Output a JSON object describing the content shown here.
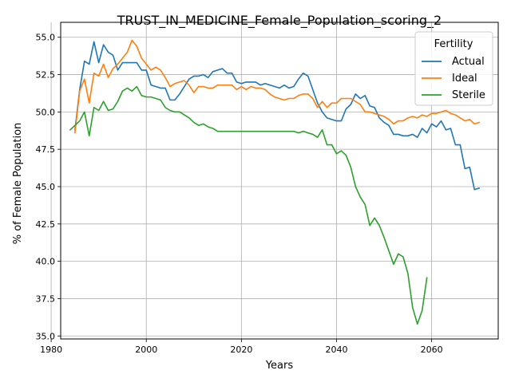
{
  "chart_data": {
    "type": "line",
    "title": "TRUST_IN_MEDICINE_Female_Population_scoring_2",
    "xlabel": "Years",
    "ylabel": "% of Female Population",
    "xlim": [
      1982,
      2074
    ],
    "ylim": [
      34.8,
      56.0
    ],
    "xticks": [
      1980,
      2000,
      2020,
      2040,
      2060
    ],
    "xtick_labels": [
      "1980",
      "2000",
      "2020",
      "2040",
      "2060"
    ],
    "yticks": [
      35.0,
      37.5,
      40.0,
      42.5,
      45.0,
      47.5,
      50.0,
      52.5,
      55.0
    ],
    "ytick_labels": [
      "35.0",
      "37.5",
      "40.0",
      "42.5",
      "45.0",
      "47.5",
      "50.0",
      "52.5",
      "55.0"
    ],
    "grid": true,
    "legend": {
      "title": "Fertility",
      "placement": "top-right"
    },
    "series": [
      {
        "name": "Actual",
        "color": "#1f77b4",
        "x": [
          1985,
          1986,
          1987,
          1988,
          1989,
          1990,
          1991,
          1992,
          1993,
          1994,
          1995,
          1996,
          1997,
          1998,
          1999,
          2000,
          2001,
          2002,
          2003,
          2004,
          2005,
          2006,
          2007,
          2008,
          2009,
          2010,
          2011,
          2012,
          2013,
          2014,
          2015,
          2016,
          2017,
          2018,
          2019,
          2020,
          2021,
          2022,
          2023,
          2024,
          2025,
          2026,
          2027,
          2028,
          2029,
          2030,
          2031,
          2032,
          2033,
          2034,
          2035,
          2036,
          2037,
          2038,
          2039,
          2040,
          2041,
          2042,
          2043,
          2044,
          2045,
          2046,
          2047,
          2048,
          2049,
          2050,
          2051,
          2052,
          2053,
          2054,
          2055,
          2056,
          2057,
          2058,
          2059,
          2060,
          2061,
          2062,
          2063,
          2064,
          2065,
          2066,
          2067,
          2068,
          2069,
          2070
        ],
        "values": [
          48.8,
          51.5,
          53.4,
          53.2,
          54.7,
          53.3,
          54.5,
          54.0,
          53.8,
          52.8,
          53.3,
          53.3,
          53.3,
          53.3,
          52.8,
          52.8,
          51.8,
          51.7,
          51.6,
          51.6,
          50.8,
          50.8,
          51.2,
          51.7,
          52.2,
          52.4,
          52.4,
          52.5,
          52.3,
          52.7,
          52.8,
          52.9,
          52.6,
          52.6,
          52.0,
          51.9,
          52.0,
          52.0,
          52.0,
          51.8,
          51.9,
          51.8,
          51.7,
          51.6,
          51.8,
          51.6,
          51.7,
          52.2,
          52.6,
          52.4,
          51.5,
          50.6,
          50.0,
          49.6,
          49.5,
          49.4,
          49.4,
          50.2,
          50.5,
          51.2,
          50.9,
          51.1,
          50.4,
          50.3,
          49.6,
          49.3,
          49.1,
          48.5,
          48.5,
          48.4,
          48.4,
          48.5,
          48.3,
          48.9,
          48.6,
          49.2,
          49.0,
          49.4,
          48.8,
          48.9,
          47.8,
          47.8,
          46.2,
          46.3,
          44.8,
          44.9
        ]
      },
      {
        "name": "Ideal",
        "color": "#ff7f0e",
        "x": [
          1985,
          1986,
          1987,
          1988,
          1989,
          1990,
          1991,
          1992,
          1993,
          1994,
          1995,
          1996,
          1997,
          1998,
          1999,
          2000,
          2001,
          2002,
          2003,
          2004,
          2005,
          2006,
          2007,
          2008,
          2009,
          2010,
          2011,
          2012,
          2013,
          2014,
          2015,
          2016,
          2017,
          2018,
          2019,
          2020,
          2021,
          2022,
          2023,
          2024,
          2025,
          2026,
          2027,
          2028,
          2029,
          2030,
          2031,
          2032,
          2033,
          2034,
          2035,
          2036,
          2037,
          2038,
          2039,
          2040,
          2041,
          2042,
          2043,
          2044,
          2045,
          2046,
          2047,
          2048,
          2049,
          2050,
          2051,
          2052,
          2053,
          2054,
          2055,
          2056,
          2057,
          2058,
          2059,
          2060,
          2061,
          2062,
          2063,
          2064,
          2065,
          2066,
          2067,
          2068,
          2069,
          2070
        ],
        "values": [
          48.6,
          51.4,
          52.2,
          50.6,
          52.6,
          52.4,
          53.2,
          52.3,
          52.9,
          53.2,
          53.6,
          54.0,
          54.8,
          54.4,
          53.6,
          53.2,
          52.8,
          53.0,
          52.8,
          52.3,
          51.7,
          51.9,
          52.0,
          52.1,
          51.8,
          51.3,
          51.7,
          51.7,
          51.6,
          51.6,
          51.8,
          51.8,
          51.8,
          51.8,
          51.5,
          51.7,
          51.5,
          51.7,
          51.6,
          51.6,
          51.5,
          51.2,
          51.0,
          50.9,
          50.8,
          50.9,
          50.9,
          51.1,
          51.2,
          51.2,
          50.9,
          50.3,
          50.7,
          50.3,
          50.6,
          50.6,
          50.9,
          50.9,
          50.9,
          50.7,
          50.5,
          50.0,
          50.0,
          49.9,
          49.8,
          49.7,
          49.5,
          49.2,
          49.4,
          49.4,
          49.6,
          49.7,
          49.6,
          49.8,
          49.7,
          49.9,
          49.9,
          50.0,
          50.1,
          49.9,
          49.8,
          49.6,
          49.4,
          49.5,
          49.2,
          49.3
        ]
      },
      {
        "name": "Sterile",
        "color": "#2ca02c",
        "x": [
          1984,
          1985,
          1986,
          1987,
          1988,
          1989,
          1990,
          1991,
          1992,
          1993,
          1994,
          1995,
          1996,
          1997,
          1998,
          1999,
          2000,
          2001,
          2002,
          2003,
          2004,
          2005,
          2006,
          2007,
          2008,
          2009,
          2010,
          2011,
          2012,
          2013,
          2014,
          2015,
          2016,
          2017,
          2018,
          2019,
          2020,
          2021,
          2022,
          2023,
          2024,
          2025,
          2026,
          2027,
          2028,
          2029,
          2030,
          2031,
          2032,
          2033,
          2034,
          2035,
          2036,
          2037,
          2038,
          2039,
          2040,
          2041,
          2042,
          2043,
          2044,
          2045,
          2046,
          2047,
          2048,
          2049,
          2050,
          2051,
          2052,
          2053,
          2054,
          2055,
          2056,
          2057,
          2058,
          2059
        ],
        "values": [
          48.8,
          49.1,
          49.4,
          50.0,
          48.4,
          50.3,
          50.1,
          50.7,
          50.1,
          50.2,
          50.7,
          51.4,
          51.6,
          51.4,
          51.7,
          51.1,
          51.0,
          51.0,
          50.9,
          50.8,
          50.3,
          50.1,
          50.0,
          50.0,
          49.8,
          49.6,
          49.3,
          49.1,
          49.2,
          49.0,
          48.9,
          48.7,
          48.7,
          48.7,
          48.7,
          48.7,
          48.7,
          48.7,
          48.7,
          48.7,
          48.7,
          48.7,
          48.7,
          48.7,
          48.7,
          48.7,
          48.7,
          48.7,
          48.6,
          48.7,
          48.6,
          48.5,
          48.3,
          48.8,
          47.8,
          47.8,
          47.2,
          47.4,
          47.1,
          46.3,
          45.0,
          44.3,
          43.8,
          42.4,
          42.9,
          42.4,
          41.6,
          40.7,
          39.8,
          40.5,
          40.3,
          39.2,
          36.9,
          35.8,
          36.7,
          38.9
        ]
      }
    ]
  }
}
